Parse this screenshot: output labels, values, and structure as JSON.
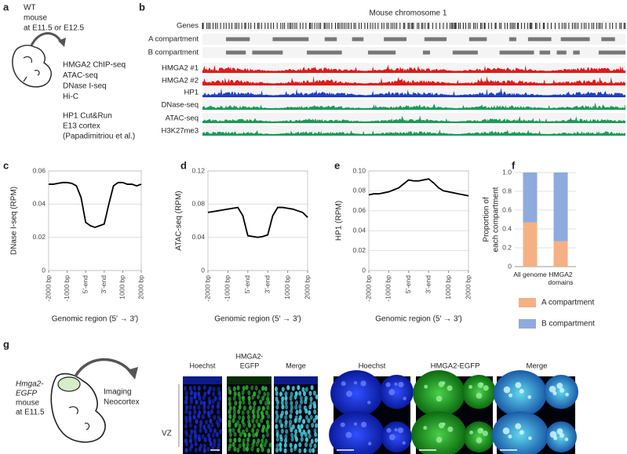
{
  "panel_a": {
    "label": "a",
    "sample": [
      "WT",
      "mouse",
      "at E11.5 or E12.5"
    ],
    "assays": [
      "HMGA2 ChIP-seq",
      "ATAC-seq",
      "DNase I-seq",
      "Hi-C"
    ],
    "hp1": [
      "HP1 Cut&Run",
      "E13 cortex",
      "(Papadimitriou et al.)"
    ]
  },
  "panel_b": {
    "label": "b",
    "title": "Mouse chromosome 1",
    "tracks": [
      "Genes",
      "A compartment",
      "B compartment",
      "HMGA2 #1",
      "HMGA2 #2",
      "HP1",
      "DNase-seq",
      "ATAC-seq",
      "H3K27me3"
    ]
  },
  "chart_data": [
    {
      "panel": "c",
      "type": "line",
      "ylabel": "DNase I-seq (RPM)",
      "xlabel": "Genomic region (5′ → 3′)",
      "x": [
        0,
        0.25,
        0.5,
        0.75,
        1,
        1.25,
        1.5,
        1.75,
        2,
        2.25,
        2.5,
        2.75,
        3,
        3.25,
        3.5,
        3.75,
        4,
        4.25,
        4.5,
        4.75,
        5
      ],
      "values": [
        0.052,
        0.052,
        0.0525,
        0.053,
        0.053,
        0.0525,
        0.051,
        0.044,
        0.029,
        0.027,
        0.026,
        0.027,
        0.028,
        0.04,
        0.051,
        0.053,
        0.053,
        0.052,
        0.052,
        0.051,
        0.052
      ],
      "color": "#000000",
      "xlim": [
        0,
        5
      ],
      "xticks": [
        {
          "value": 0,
          "label": "-2000 bp"
        },
        {
          "value": 1,
          "label": "-1000 bp"
        },
        {
          "value": 2,
          "label": "5'-end"
        },
        {
          "value": 3,
          "label": "3'-end"
        },
        {
          "value": 4,
          "label": "1000 bp"
        },
        {
          "value": 5,
          "label": "2000 bp"
        }
      ],
      "ylim": [
        0,
        0.06
      ],
      "yticks": [
        0,
        0.02,
        0.04,
        0.06
      ],
      "grid": true
    },
    {
      "panel": "d",
      "type": "line",
      "ylabel": "ATAC-seq (RPM)",
      "xlabel": "Genomic region (5′ → 3′)",
      "x": [
        0,
        0.25,
        0.5,
        0.75,
        1,
        1.25,
        1.5,
        1.75,
        2,
        2.25,
        2.5,
        2.75,
        3,
        3.25,
        3.5,
        3.75,
        4,
        4.25,
        4.5,
        4.75,
        5
      ],
      "values": [
        0.07,
        0.071,
        0.072,
        0.073,
        0.074,
        0.075,
        0.076,
        0.066,
        0.042,
        0.041,
        0.04,
        0.041,
        0.043,
        0.066,
        0.076,
        0.076,
        0.075,
        0.074,
        0.072,
        0.07,
        0.064
      ],
      "color": "#000000",
      "xlim": [
        0,
        5
      ],
      "xticks": [
        {
          "value": 0,
          "label": "-2000 bp"
        },
        {
          "value": 1,
          "label": "-1000 bp"
        },
        {
          "value": 2,
          "label": "5'-end"
        },
        {
          "value": 3,
          "label": "3'-end"
        },
        {
          "value": 4,
          "label": "1000 bp"
        },
        {
          "value": 5,
          "label": "2000 bp"
        }
      ],
      "ylim": [
        0,
        0.12
      ],
      "yticks": [
        0,
        0.04,
        0.08,
        0.12
      ],
      "grid": true
    },
    {
      "panel": "e",
      "type": "line",
      "ylabel": "HP1 (RPM)",
      "xlabel": "Genomic region (5′ → 3′)",
      "x": [
        0,
        0.25,
        0.5,
        0.75,
        1,
        1.25,
        1.5,
        1.75,
        2,
        2.25,
        2.5,
        2.75,
        3,
        3.25,
        3.5,
        3.75,
        4,
        4.25,
        4.5,
        4.75,
        5
      ],
      "values": [
        0.076,
        0.077,
        0.077,
        0.078,
        0.079,
        0.081,
        0.083,
        0.087,
        0.091,
        0.09,
        0.09,
        0.091,
        0.092,
        0.088,
        0.083,
        0.08,
        0.079,
        0.078,
        0.077,
        0.076,
        0.075
      ],
      "color": "#000000",
      "xlim": [
        0,
        5
      ],
      "xticks": [
        {
          "value": 0,
          "label": "-2000 bp"
        },
        {
          "value": 1,
          "label": "-1000 bp"
        },
        {
          "value": 2,
          "label": "5'-end"
        },
        {
          "value": 3,
          "label": "3'-end"
        },
        {
          "value": 4,
          "label": "1000 bp"
        },
        {
          "value": 5,
          "label": "2000 bp"
        }
      ],
      "ylim": [
        0,
        0.1
      ],
      "yticks": [
        0,
        0.02,
        0.04,
        0.06,
        0.08,
        {
          "value": 0.1,
          "label": "0.10"
        }
      ],
      "grid": true
    },
    {
      "panel": "f",
      "type": "stacked-bar",
      "ylabel": [
        "Proportion of",
        "each compartment"
      ],
      "categories": [
        "All genome",
        "HMGA2 domains"
      ],
      "series": [
        {
          "name": "A compartment",
          "color": "#f4b183",
          "values": [
            0.47,
            0.27
          ]
        },
        {
          "name": "B compartment",
          "color": "#8faadc",
          "values": [
            0.53,
            0.73
          ]
        }
      ],
      "ylim": [
        0,
        1
      ],
      "yticks": [
        0,
        0.2,
        0.4,
        0.6,
        0.8,
        {
          "value": 1,
          "label": "1.0"
        }
      ],
      "grid": true,
      "legend": "bottom"
    }
  ],
  "panel_g": {
    "label": "g",
    "genotype": [
      "Hmga2-",
      "EGFP"
    ],
    "sample": [
      "mouse",
      "at E11.5"
    ],
    "imaging": [
      "Imaging",
      "Neocortex"
    ],
    "tissue_headers": [
      [
        "Hoechst"
      ],
      [
        "HMGA2-",
        "EGFP"
      ],
      [
        "Merge"
      ]
    ],
    "zone": "VZ",
    "cell_headers": [
      "Hoechst",
      "HMGA2-EGFP",
      "Merge"
    ]
  }
}
